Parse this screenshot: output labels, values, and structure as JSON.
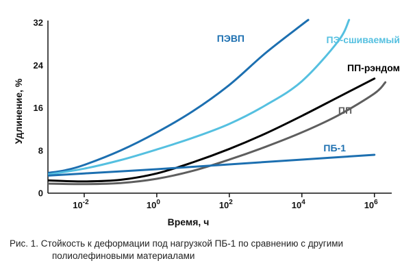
{
  "chart_data": {
    "type": "line",
    "xlabel": "Время, ч",
    "ylabel": "Удлинение, %",
    "x_scale": "log",
    "xlim": [
      0.001,
      3000000
    ],
    "ylim": [
      0,
      32
    ],
    "x_tick_values": [
      0.01,
      1,
      100,
      10000,
      1000000
    ],
    "x_tick_labels": [
      {
        "base": "10",
        "exp": "-2"
      },
      {
        "base": "10",
        "exp": "0"
      },
      {
        "base": "10",
        "exp": "2"
      },
      {
        "base": "10",
        "exp": "4"
      },
      {
        "base": "10",
        "exp": "6"
      }
    ],
    "y_ticks": [
      0,
      8,
      16,
      24,
      32
    ],
    "y_tick_labels": [
      "0",
      "8",
      "16",
      "24",
      "32"
    ],
    "series": [
      {
        "name": "ПЭВП",
        "color": "#1c6fb0",
        "x": [
          0.001,
          0.003,
          0.01,
          0.1,
          1,
          10,
          100,
          1000,
          10000,
          15000
        ],
        "y": [
          3.8,
          4.3,
          5.3,
          8,
          11.4,
          15.4,
          20.3,
          26.3,
          31.6,
          32.5
        ]
      },
      {
        "name": "ПЭ-сшиваемый",
        "color": "#55c0e0",
        "x": [
          0.001,
          0.01,
          0.1,
          1,
          10,
          100,
          1000,
          10000,
          100000,
          200000
        ],
        "y": [
          3.5,
          4.6,
          6.2,
          8.2,
          10.4,
          13,
          16.5,
          21,
          28.5,
          32.5
        ]
      },
      {
        "name": "ПП-рэндом",
        "color": "#000000",
        "x": [
          0.001,
          0.01,
          0.1,
          1,
          10,
          100,
          1000,
          10000,
          100000,
          1000000
        ],
        "y": [
          2.4,
          2.2,
          2.5,
          3.7,
          5.8,
          8.3,
          11.2,
          14.5,
          18,
          21.5
        ]
      },
      {
        "name": "ПП",
        "color": "#5e5e5e",
        "x": [
          0.001,
          0.01,
          0.1,
          1,
          10,
          100,
          1000,
          10000,
          100000,
          1000000,
          2000000
        ],
        "y": [
          1.8,
          1.7,
          1.9,
          2.7,
          4.2,
          6.3,
          8.7,
          11.4,
          14.6,
          18.7,
          20.8
        ]
      },
      {
        "name": "ПБ-1",
        "color": "#1c6fb0",
        "x": [
          0.001,
          0.01,
          1,
          100,
          10000,
          1000000
        ],
        "y": [
          3.3,
          3.7,
          4.5,
          5.4,
          6.3,
          7.2
        ]
      }
    ]
  },
  "caption": {
    "line1": "Рис. 1. Стойкость к деформации под нагрузкой ПБ-1 по сравнению с другими",
    "line2": "полиолефиновыми материалами"
  }
}
